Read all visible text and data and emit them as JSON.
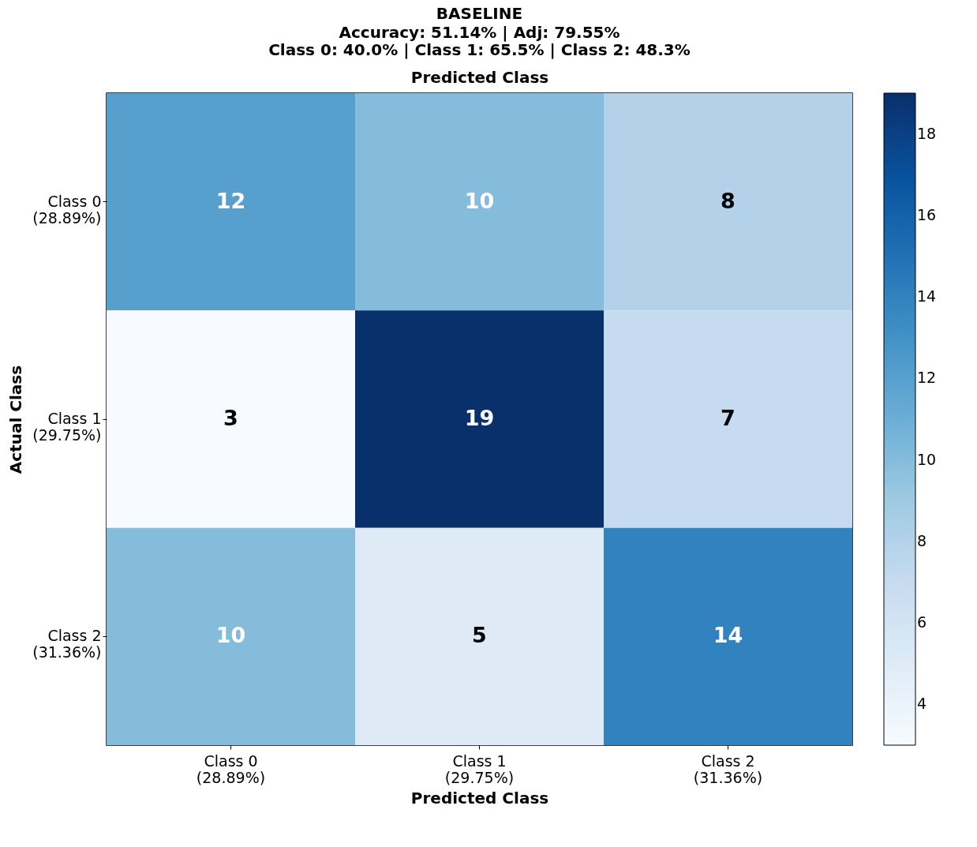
{
  "chart_data": {
    "type": "heatmap",
    "title": "BASELINE",
    "subtitle": "Accuracy: 51.14% | Adj: 79.55%\nClass 0: 40.0% | Class 1: 65.5% | Class 2: 48.3%",
    "xlabel": "Predicted Class",
    "x2label": "Predicted Class",
    "ylabel": "Actual Class",
    "categories": [
      "Class 0\n(28.89%)",
      "Class 1\n(29.75%)",
      "Class 2\n(31.36%)"
    ],
    "y_categories": [
      "Class 0\n(28.89%)",
      "Class 1\n(29.75%)",
      "Class 2\n(31.36%)"
    ],
    "cells": [
      [
        12,
        10,
        8
      ],
      [
        3,
        19,
        7
      ],
      [
        10,
        5,
        14
      ]
    ],
    "data_labels": true,
    "clim": [
      3,
      19
    ],
    "cticks": [
      4,
      6,
      8,
      10,
      12,
      14,
      16,
      18
    ]
  }
}
